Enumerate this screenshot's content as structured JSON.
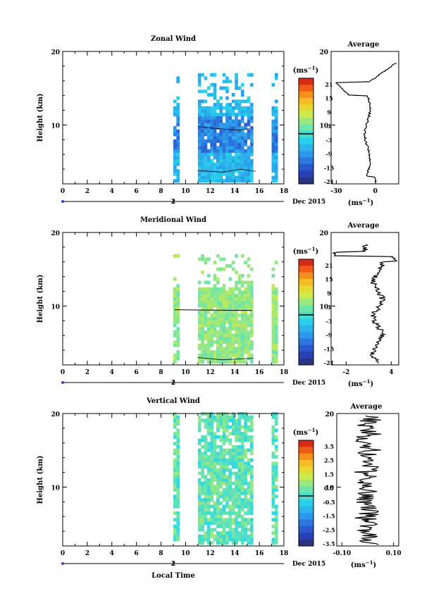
{
  "chart_data": [
    {
      "type": "heatmap",
      "title": "Zonal Wind",
      "ylabel": "Height (km)",
      "ylim": [
        2,
        20
      ],
      "xlim": [
        0,
        18
      ],
      "x_ticks": [
        "0",
        "2",
        "4",
        "6",
        "8",
        "10",
        "12",
        "14",
        "16",
        "18"
      ],
      "y_ticks": [
        "10",
        "20"
      ],
      "data_columns_hours": [
        9.0,
        9.5,
        11.0,
        15.5,
        17.0,
        17.5
      ],
      "date_label": "Dec 2015",
      "day_label": "2",
      "colorbar": {
        "unit": "(ms",
        "unit_sup": "−1",
        "unit_close": ")",
        "ticks": [
          "21",
          "15",
          "9",
          "3",
          "-3",
          "-9",
          "-15",
          "-21"
        ],
        "range": [
          -24,
          24
        ]
      },
      "average": {
        "title": "Average",
        "x_ticks": [
          "-30",
          "0"
        ],
        "xlim": [
          -34,
          18
        ],
        "ylim": [
          2,
          20
        ],
        "xlabel": "(ms",
        "xlabel_sup": "−1",
        "xlabel_close": ")"
      }
    },
    {
      "type": "heatmap",
      "title": "Meridional Wind",
      "ylabel": "Height (km)",
      "ylim": [
        2,
        20
      ],
      "xlim": [
        0,
        18
      ],
      "x_ticks": [
        "0",
        "2",
        "4",
        "6",
        "8",
        "10",
        "12",
        "14",
        "16",
        "18"
      ],
      "y_ticks": [
        "10",
        "20"
      ],
      "date_label": "Dec 2015",
      "day_label": "2",
      "colorbar": {
        "unit": "(ms",
        "unit_sup": "−1",
        "unit_close": ")",
        "ticks": [
          "21",
          "15",
          "9",
          "3",
          "-3",
          "-9",
          "-15",
          "-21"
        ],
        "range": [
          -24,
          24
        ]
      },
      "average": {
        "title": "Average",
        "x_ticks": [
          "-2",
          "4"
        ],
        "xlim": [
          -4,
          5
        ],
        "ylim": [
          2,
          20
        ],
        "xlabel": "(ms",
        "xlabel_sup": "−1",
        "xlabel_close": ")"
      }
    },
    {
      "type": "heatmap",
      "title": "Vertical Wind",
      "ylabel": "Height (km)",
      "xlabel": "Local Time",
      "ylim": [
        2,
        20
      ],
      "xlim": [
        0,
        18
      ],
      "x_ticks": [
        "0",
        "2",
        "4",
        "6",
        "8",
        "10",
        "12",
        "14",
        "16",
        "18"
      ],
      "y_ticks": [
        "10",
        "20"
      ],
      "date_label": "Dec 2015",
      "day_label": "2",
      "colorbar": {
        "unit": "(ms",
        "unit_sup": "−1",
        "unit_close": ")",
        "ticks": [
          "3.5",
          "2.5",
          "1.5",
          "0.5",
          "-0.5",
          "-1.5",
          "-2.5",
          "-3.5"
        ],
        "range": [
          -4,
          4
        ]
      },
      "average": {
        "title": "Average",
        "x_ticks": [
          "-0.10",
          "0.10"
        ],
        "xlim": [
          -0.12,
          0.12
        ],
        "ylim": [
          2,
          20
        ],
        "xlabel": "(ms",
        "xlabel_sup": "−1",
        "xlabel_close": ")"
      }
    }
  ]
}
